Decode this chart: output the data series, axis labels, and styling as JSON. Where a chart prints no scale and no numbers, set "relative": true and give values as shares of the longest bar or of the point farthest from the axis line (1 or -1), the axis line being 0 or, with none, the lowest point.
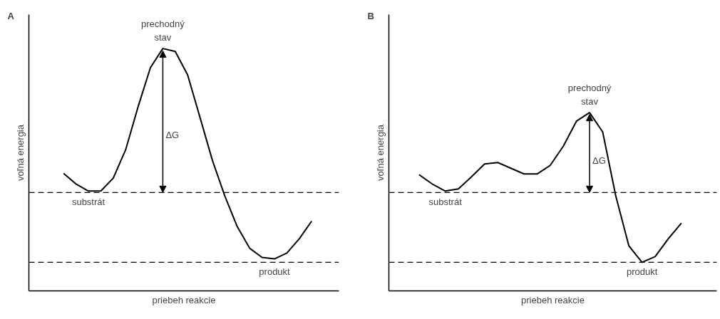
{
  "chart_data": [
    {
      "type": "line",
      "title": "A",
      "xlabel": "priebeh reakcie",
      "ylabel": "voľná energia",
      "relative": true,
      "marker": "none",
      "line_style": "solid",
      "categories": [
        null,
        null,
        null,
        null,
        null,
        null,
        null,
        null,
        null,
        null,
        null,
        null,
        null,
        null,
        null,
        null,
        null,
        null,
        null,
        null,
        null
      ],
      "series": [
        {
          "color": "#000000",
          "values": [
            0.485,
            0.441,
            0.412,
            0.412,
            0.465,
            0.582,
            0.759,
            0.921,
            1.0,
            0.988,
            0.891,
            0.715,
            0.538,
            0.391,
            0.265,
            0.176,
            0.138,
            0.132,
            0.156,
            0.215,
            0.288
          ]
        }
      ],
      "ref_lines": [
        {
          "axis": "y",
          "value": 0.406,
          "color": "#000000",
          "line_style": "dashed"
        },
        {
          "axis": "y",
          "value": 0.118,
          "color": "#000000",
          "line_style": "dashed"
        }
      ],
      "annotations": [
        "prechodný stav",
        "ΔG",
        "substrát",
        "produkt"
      ]
    },
    {
      "type": "line",
      "title": "B",
      "xlabel": "priebeh reakcie",
      "ylabel": "voľná energia",
      "relative": true,
      "marker": "none",
      "line_style": "solid",
      "categories": [
        null,
        null,
        null,
        null,
        null,
        null,
        null,
        null,
        null,
        null,
        null,
        null,
        null,
        null,
        null,
        null,
        null,
        null,
        null,
        null,
        null
      ],
      "series": [
        {
          "color": "#000000",
          "values": [
            0.652,
            0.6,
            0.56,
            0.572,
            0.64,
            0.712,
            0.72,
            0.688,
            0.656,
            0.656,
            0.704,
            0.812,
            0.952,
            1.0,
            0.892,
            0.532,
            0.252,
            0.16,
            0.192,
            0.292,
            0.38
          ]
        }
      ],
      "ref_lines": [
        {
          "axis": "y",
          "value": 0.552,
          "color": "#000000",
          "line_style": "dashed"
        },
        {
          "axis": "y",
          "value": 0.16,
          "color": "#000000",
          "line_style": "dashed"
        }
      ],
      "annotations": [
        "prechodný stav",
        "ΔG",
        "substrát",
        "produkt"
      ]
    }
  ]
}
